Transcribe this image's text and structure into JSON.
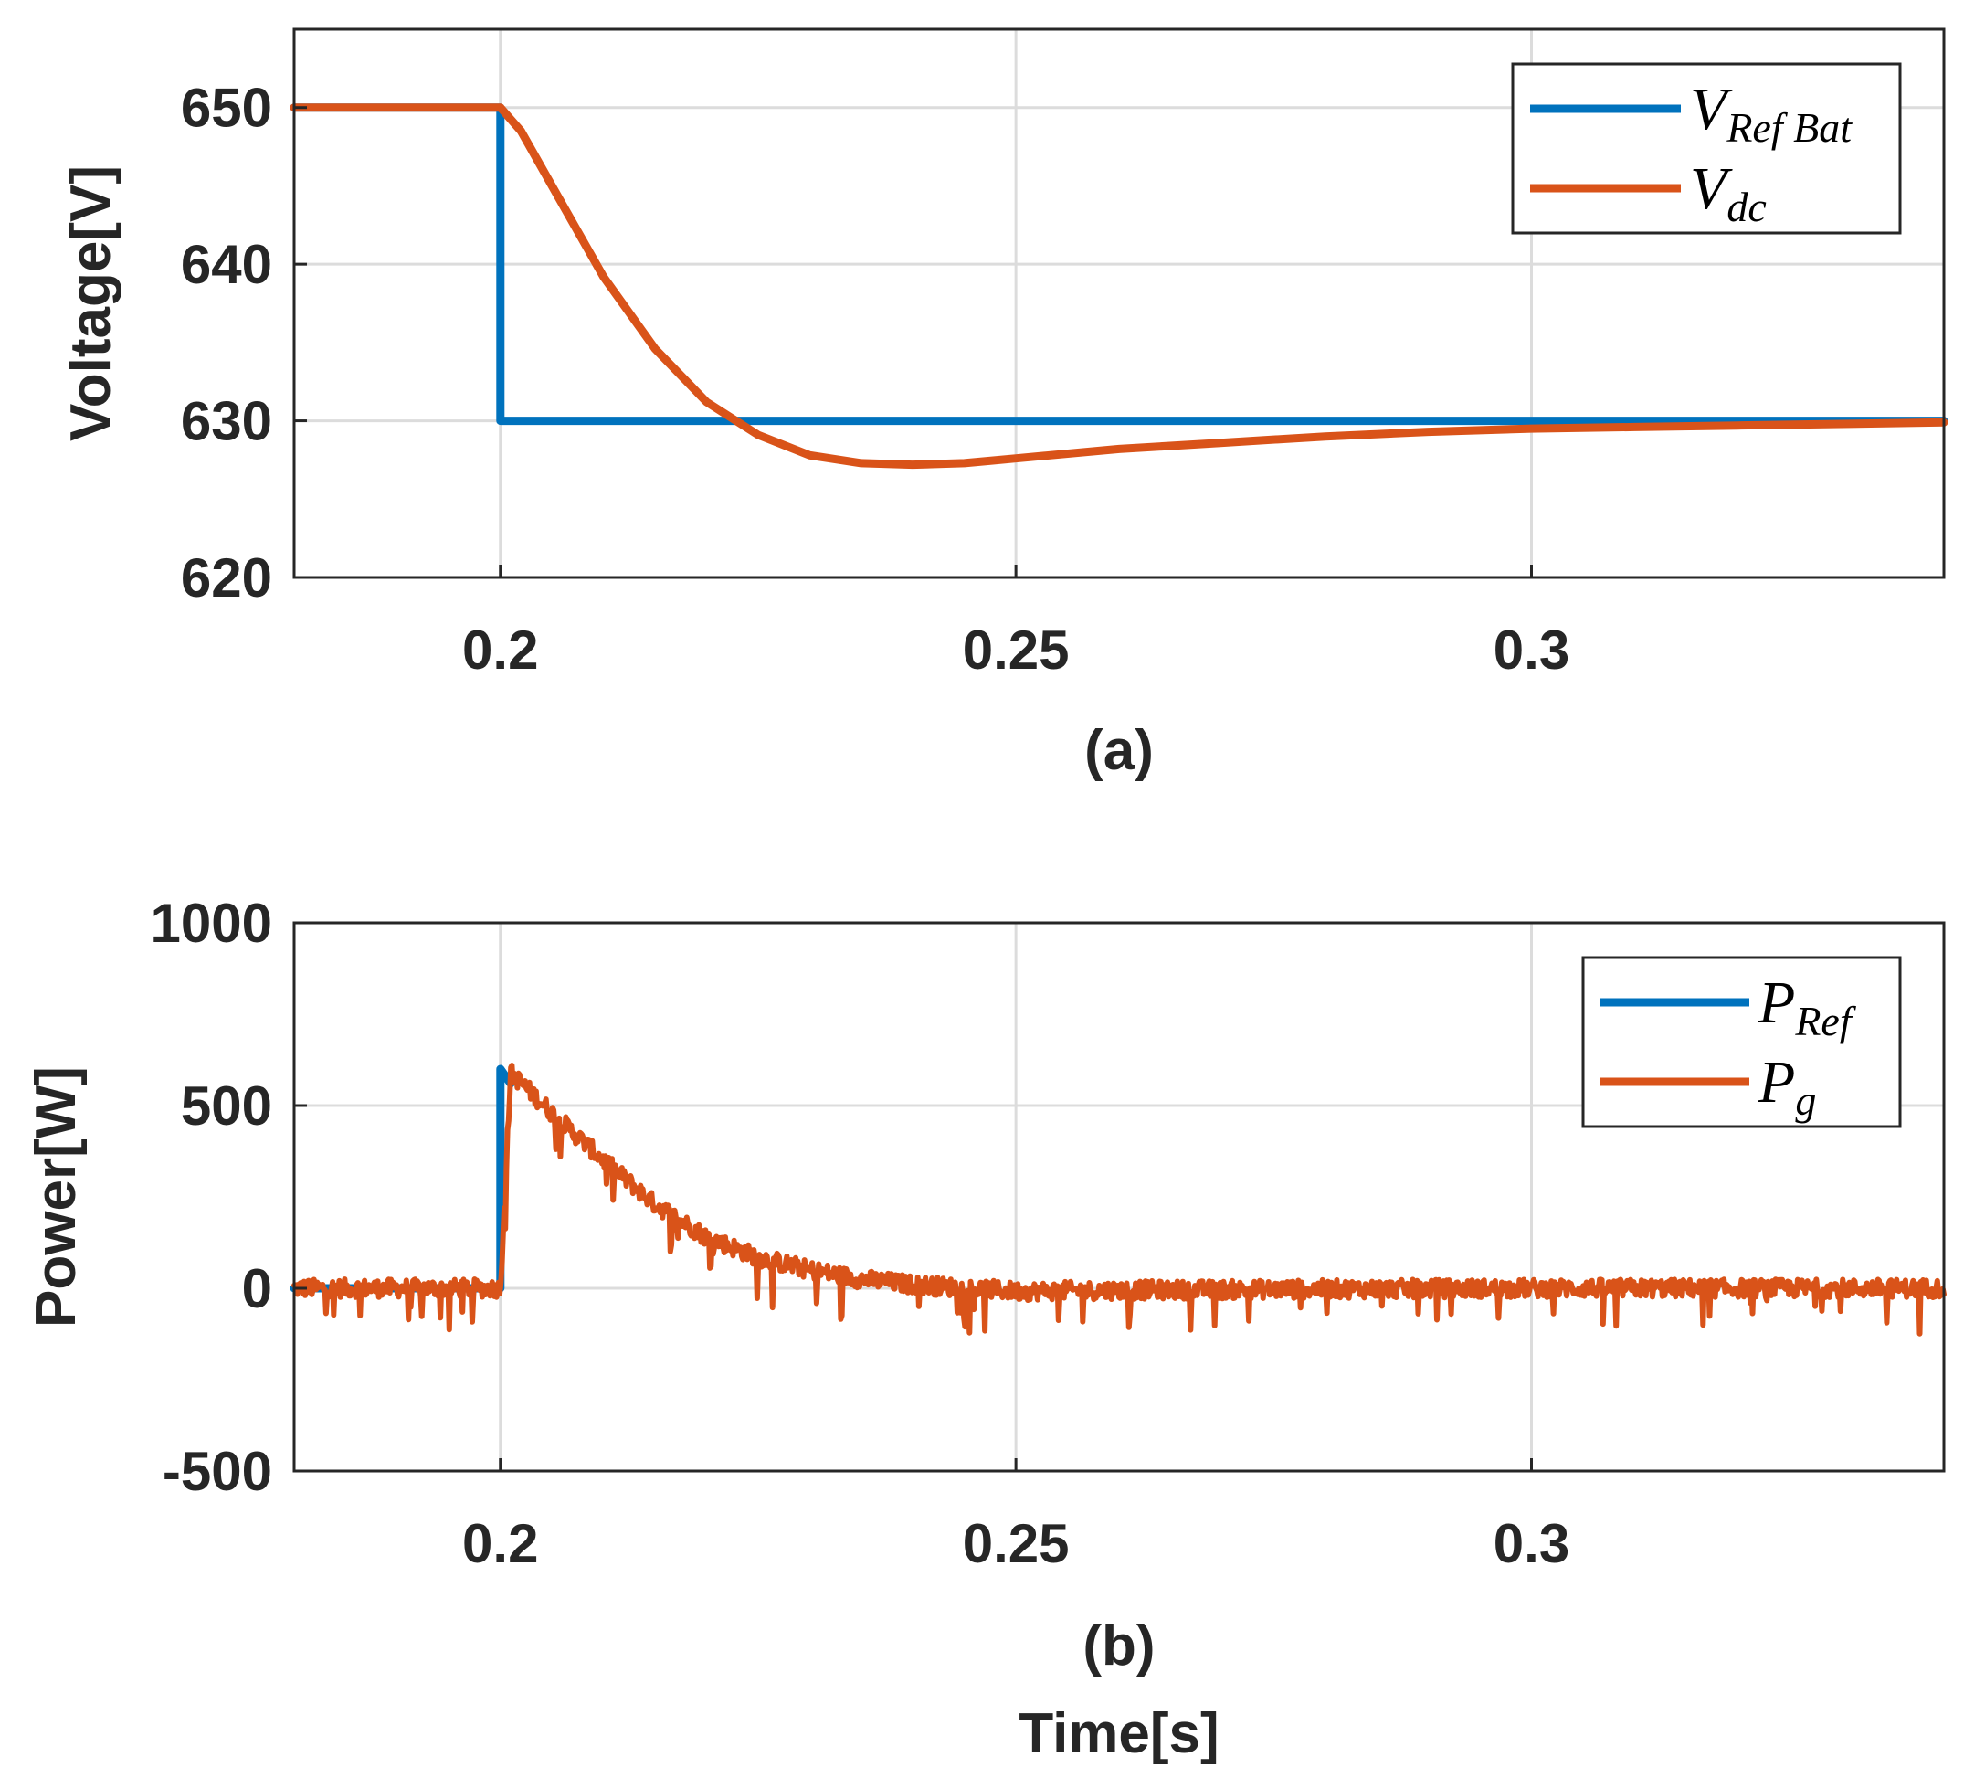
{
  "colors": {
    "blue": "#0072BD",
    "orange": "#D95319",
    "axis": "#262626",
    "grid": "#dcdcdc"
  },
  "chart_data": [
    {
      "type": "line",
      "subplot_label": "(a)",
      "title": "",
      "xlabel": "",
      "ylabel": "Voltage[V]",
      "xlim": [
        0.18,
        0.34
      ],
      "ylim": [
        620,
        655
      ],
      "xticks": [
        0.2,
        0.25,
        0.3
      ],
      "xtick_labels": [
        "0.2",
        "0.25",
        "0.3"
      ],
      "yticks": [
        620,
        630,
        640,
        650
      ],
      "ytick_labels": [
        "620",
        "630",
        "640",
        "650"
      ],
      "grid": true,
      "legend_position": "top-right",
      "series": [
        {
          "name": "V_RefBat",
          "legend_main": "V",
          "legend_sub": "Ref Bat",
          "color": "#0072BD",
          "x": [
            0.18,
            0.2,
            0.2,
            0.34
          ],
          "y": [
            650,
            650,
            630,
            630
          ]
        },
        {
          "name": "V_dc",
          "legend_main": "V",
          "legend_sub": "dc",
          "color": "#D95319",
          "x": [
            0.18,
            0.2,
            0.202,
            0.205,
            0.21,
            0.215,
            0.22,
            0.225,
            0.23,
            0.235,
            0.24,
            0.245,
            0.25,
            0.26,
            0.27,
            0.28,
            0.29,
            0.3,
            0.31,
            0.32,
            0.33,
            0.34
          ],
          "y": [
            650,
            650,
            648.5,
            645,
            639.2,
            634.6,
            631.2,
            629.1,
            627.8,
            627.3,
            627.2,
            627.3,
            627.6,
            628.2,
            628.6,
            629.0,
            629.3,
            629.5,
            629.6,
            629.7,
            629.8,
            629.9
          ]
        }
      ]
    },
    {
      "type": "line",
      "subplot_label": "(b)",
      "title": "",
      "xlabel": "Time[s]",
      "ylabel": "Power[W]",
      "xlim": [
        0.18,
        0.34
      ],
      "ylim": [
        -500,
        1000
      ],
      "xticks": [
        0.2,
        0.25,
        0.3
      ],
      "xtick_labels": [
        "0.2",
        "0.25",
        "0.3"
      ],
      "yticks": [
        -500,
        0,
        500,
        1000
      ],
      "ytick_labels": [
        "-500",
        "0",
        "500",
        "1000"
      ],
      "grid": true,
      "legend_position": "top-right",
      "series": [
        {
          "name": "P_Ref",
          "legend_main": "P",
          "legend_sub": "Ref",
          "color": "#0072BD",
          "x": [
            0.18,
            0.2,
            0.2,
            0.201
          ],
          "y": [
            0,
            0,
            600,
            560
          ]
        },
        {
          "name": "P_g",
          "legend_main": "P",
          "legend_sub": "g",
          "color": "#D95319",
          "x": [
            0.18,
            0.2,
            0.2005,
            0.201,
            0.205,
            0.21,
            0.215,
            0.22,
            0.225,
            0.23,
            0.235,
            0.24,
            0.25,
            0.26,
            0.27,
            0.28,
            0.29,
            0.3,
            0.31,
            0.32,
            0.33,
            0.34
          ],
          "y": [
            0,
            0,
            300,
            590,
            480,
            350,
            230,
            140,
            85,
            50,
            25,
            10,
            -8,
            -5,
            -4,
            -2,
            -1,
            0,
            0,
            0,
            0,
            0
          ],
          "noise_amplitude": 25,
          "spike_depth": 100
        }
      ]
    }
  ]
}
